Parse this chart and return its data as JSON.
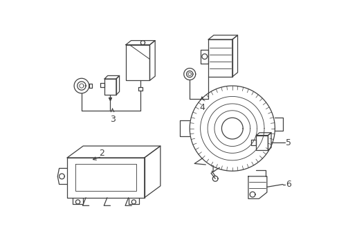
{
  "bg_color": "#ffffff",
  "line_color": "#404040",
  "label_color": "#000000",
  "figsize": [
    4.9,
    3.6
  ],
  "dpi": 100,
  "label_fontsize": 9
}
